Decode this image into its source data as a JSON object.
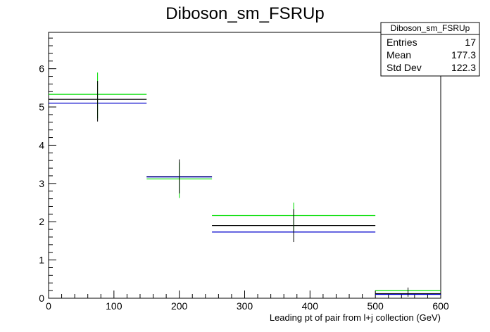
{
  "chart_data": {
    "type": "histogram",
    "title": "Diboson_sm_FSRUp",
    "xlabel": "Leading pt of pair from l+j collection (GeV)",
    "ylabel": "",
    "xlim": [
      0,
      600
    ],
    "ylim": [
      0,
      6.95
    ],
    "x_ticks": [
      0,
      100,
      200,
      300,
      400,
      500,
      600
    ],
    "y_ticks": [
      0,
      1,
      2,
      3,
      4,
      5,
      6
    ],
    "bins": [
      {
        "low": 0,
        "high": 150,
        "center": 75
      },
      {
        "low": 150,
        "high": 250,
        "center": 200
      },
      {
        "low": 250,
        "high": 500,
        "center": 375
      },
      {
        "low": 500,
        "high": 600,
        "center": 550
      }
    ],
    "series": [
      {
        "color": "#00dd00",
        "values": [
          5.33,
          3.12,
          2.16,
          0.2
        ]
      },
      {
        "color": "#000000",
        "values": [
          5.2,
          3.18,
          1.9,
          0.12
        ]
      },
      {
        "color": "#0000cc",
        "values": [
          5.1,
          3.17,
          1.73,
          0.1
        ]
      }
    ],
    "error_bars": [
      {
        "color": "#00dd00",
        "x": 75,
        "y_low": 4.7,
        "y_high": 5.9
      },
      {
        "color": "#000000",
        "x": 75,
        "y_low": 4.62,
        "y_high": 5.68
      },
      {
        "color": "#00dd00",
        "x": 200,
        "y_low": 2.62,
        "y_high": 3.55
      },
      {
        "color": "#000000",
        "x": 200,
        "y_low": 2.74,
        "y_high": 3.63
      },
      {
        "color": "#00dd00",
        "x": 375,
        "y_low": 1.75,
        "y_high": 2.5
      },
      {
        "color": "#000000",
        "x": 375,
        "y_low": 1.47,
        "y_high": 2.33
      },
      {
        "color": "#000000",
        "x": 550,
        "y_low": 0.04,
        "y_high": 0.28
      }
    ],
    "legend_position": "top-right",
    "stats": {
      "title": "Diboson_sm_FSRUp",
      "rows": [
        {
          "label": "Entries",
          "value": "17"
        },
        {
          "label": "Mean",
          "value": "177.3"
        },
        {
          "label": "Std Dev",
          "value": "122.3"
        }
      ]
    }
  }
}
